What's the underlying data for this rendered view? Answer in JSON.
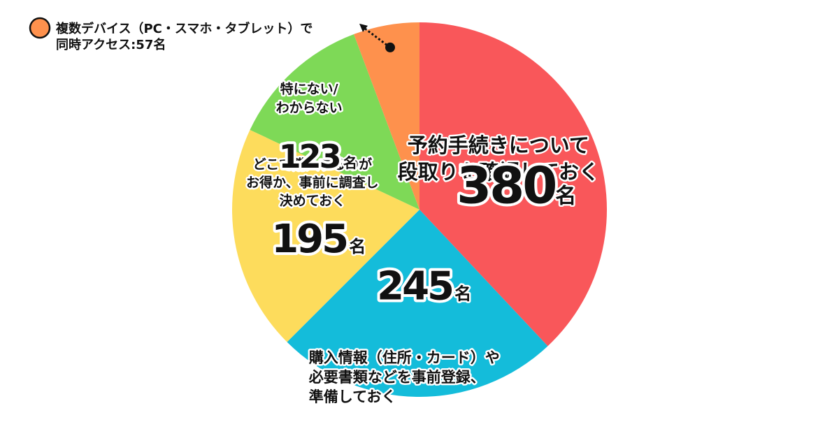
{
  "chart_data": {
    "type": "pie",
    "unit": "名",
    "slices": [
      {
        "label": "予約手続きについて\n段取りを確認しておく",
        "value": 380,
        "color": "#F9575A"
      },
      {
        "label": "購入情報（住所・カード）や\n必要書類などを事前登録、\n準備しておく",
        "value": 245,
        "color": "#14BCDA"
      },
      {
        "label": "どこで購入するのが\nお得か、事前に調査し\n決めておく",
        "value": 195,
        "color": "#FDDC5C"
      },
      {
        "label": "特にない/\nわからない",
        "value": 123,
        "color": "#7ED957"
      },
      {
        "label": "複数デバイス（PC・スマホ・タブレット）で\n同時アクセス:57名",
        "value": 57,
        "color": "#FE914D"
      }
    ]
  }
}
